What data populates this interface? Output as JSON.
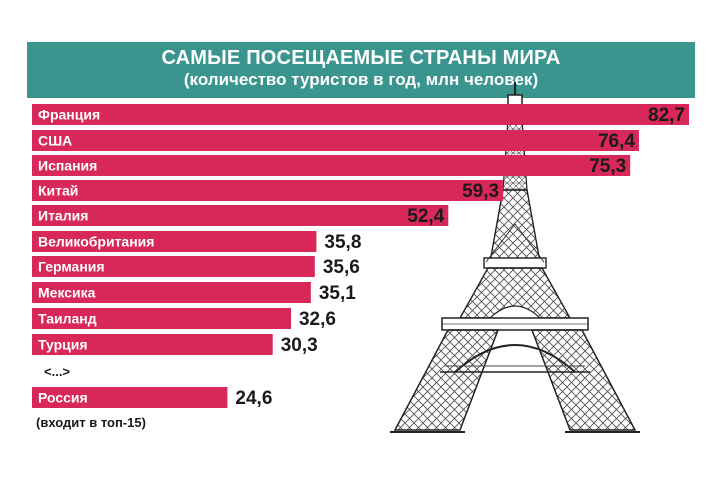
{
  "chart_data": {
    "type": "bar",
    "orientation": "horizontal",
    "title": "САМЫЕ ПОСЕЩАЕМЫЕ СТРАНЫ МИРА",
    "subtitle": "(количество туристов в год, млн человек)",
    "categories": [
      "Франция",
      "США",
      "Испания",
      "Китай",
      "Италия",
      "Великобритания",
      "Германия",
      "Мексика",
      "Таиланд",
      "Турция",
      "Россия"
    ],
    "values": [
      82.7,
      76.4,
      75.3,
      59.3,
      52.4,
      35.8,
      35.6,
      35.1,
      32.6,
      30.3,
      24.6
    ],
    "value_labels": [
      "82,7",
      "76,4",
      "75,3",
      "59,3",
      "52,4",
      "35,8",
      "35,6",
      "35,1",
      "32,6",
      "30,3",
      "24,6"
    ],
    "gap_marker": "<...>",
    "footnote": "(входит в топ-15)",
    "bar_color": "#d8285a",
    "header_color": "#3a958f",
    "grid": false
  }
}
